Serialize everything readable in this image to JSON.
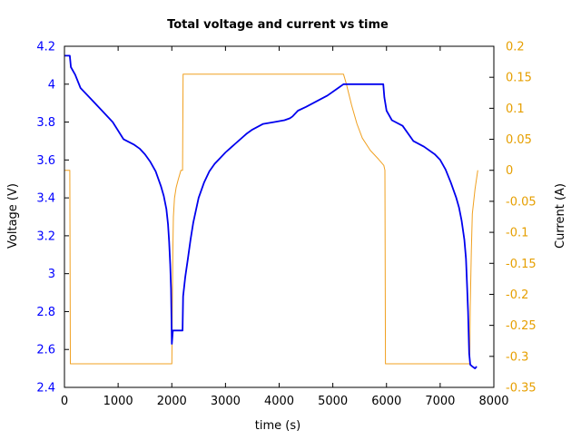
{
  "chart_data": {
    "type": "line",
    "title": "Total voltage and current vs time",
    "xlabel": "time (s)",
    "ylabel_left": "Voltage (V)",
    "ylabel_right": "Current (A)",
    "xlim": [
      0,
      8000
    ],
    "ylim_left": [
      2.4,
      4.2
    ],
    "ylim_right": [
      -0.35,
      0.2
    ],
    "x_ticks": [
      "0",
      "1000",
      "2000",
      "3000",
      "4000",
      "5000",
      "6000",
      "7000",
      "8000"
    ],
    "x_tick_values": [
      0,
      1000,
      2000,
      3000,
      4000,
      5000,
      6000,
      7000,
      8000
    ],
    "y_left_ticks": [
      "2.4",
      "2.6",
      "2.8",
      "3",
      "3.2",
      "3.4",
      "3.6",
      "3.8",
      "4",
      "4.2"
    ],
    "y_left_tick_values": [
      2.4,
      2.6,
      2.8,
      3.0,
      3.2,
      3.4,
      3.6,
      3.8,
      4.0,
      4.2
    ],
    "y_right_ticks": [
      "-0.35",
      "-0.3",
      "-0.25",
      "-0.2",
      "-0.15",
      "-0.1",
      "-0.05",
      "0",
      "0.05",
      "0.1",
      "0.15",
      "0.2"
    ],
    "y_right_tick_values": [
      -0.35,
      -0.3,
      -0.25,
      -0.2,
      -0.15,
      -0.1,
      -0.05,
      0.0,
      0.05,
      0.1,
      0.15,
      0.2
    ],
    "colors": {
      "voltage": "#0000ee",
      "current": "#f0a020",
      "left_axis": "#0000ff",
      "right_axis": "#e69f00"
    },
    "grid": false,
    "series": [
      {
        "axis": "left",
        "x": [
          0,
          100,
          120,
          200,
          300,
          500,
          700,
          900,
          1100,
          1300,
          1400,
          1500,
          1600,
          1700,
          1800,
          1850,
          1900,
          1930,
          1950,
          1970,
          1985,
          2000,
          2020,
          2050,
          2100,
          2150,
          2200,
          2210,
          2250,
          2300,
          2350,
          2400,
          2500,
          2600,
          2700,
          2800,
          2900,
          3000,
          3200,
          3400,
          3500,
          3700,
          3900,
          4100,
          4200,
          4250,
          4350,
          4500,
          4700,
          4900,
          5100,
          5200,
          5500,
          5800,
          5940,
          5960,
          6000,
          6100,
          6300,
          6500,
          6700,
          6900,
          7000,
          7100,
          7200,
          7300,
          7350,
          7400,
          7450,
          7480,
          7500,
          7520,
          7540,
          7560,
          7600,
          7650,
          7680
        ],
        "y": [
          4.15,
          4.15,
          4.09,
          4.05,
          3.98,
          3.92,
          3.86,
          3.8,
          3.71,
          3.68,
          3.66,
          3.63,
          3.59,
          3.54,
          3.46,
          3.41,
          3.34,
          3.26,
          3.17,
          3.05,
          2.92,
          2.63,
          2.7,
          2.7,
          2.7,
          2.7,
          2.7,
          2.88,
          2.98,
          3.08,
          3.18,
          3.27,
          3.4,
          3.48,
          3.54,
          3.58,
          3.61,
          3.64,
          3.69,
          3.74,
          3.76,
          3.79,
          3.8,
          3.81,
          3.82,
          3.83,
          3.86,
          3.88,
          3.91,
          3.94,
          3.98,
          4.0,
          4.0,
          4.0,
          4.0,
          3.93,
          3.86,
          3.81,
          3.78,
          3.7,
          3.67,
          3.63,
          3.6,
          3.55,
          3.48,
          3.4,
          3.35,
          3.28,
          3.18,
          3.08,
          2.95,
          2.8,
          2.58,
          2.52,
          2.51,
          2.5,
          2.51
        ]
      },
      {
        "axis": "right",
        "x": [
          0,
          100,
          110,
          2000,
          2010,
          2020,
          2030,
          2050,
          2080,
          2120,
          2170,
          2200,
          2210,
          5200,
          5250,
          5350,
          5450,
          5550,
          5700,
          5850,
          5950,
          5970,
          5980,
          7550,
          7560,
          7580,
          7600,
          7650,
          7700
        ],
        "y": [
          0.0,
          0.0,
          -0.312,
          -0.312,
          -0.22,
          -0.13,
          -0.075,
          -0.045,
          -0.028,
          -0.015,
          0.0,
          0.0,
          0.155,
          0.155,
          0.14,
          0.105,
          0.075,
          0.052,
          0.032,
          0.018,
          0.008,
          0.0,
          -0.312,
          -0.312,
          -0.22,
          -0.13,
          -0.07,
          -0.03,
          0.0
        ]
      }
    ]
  }
}
